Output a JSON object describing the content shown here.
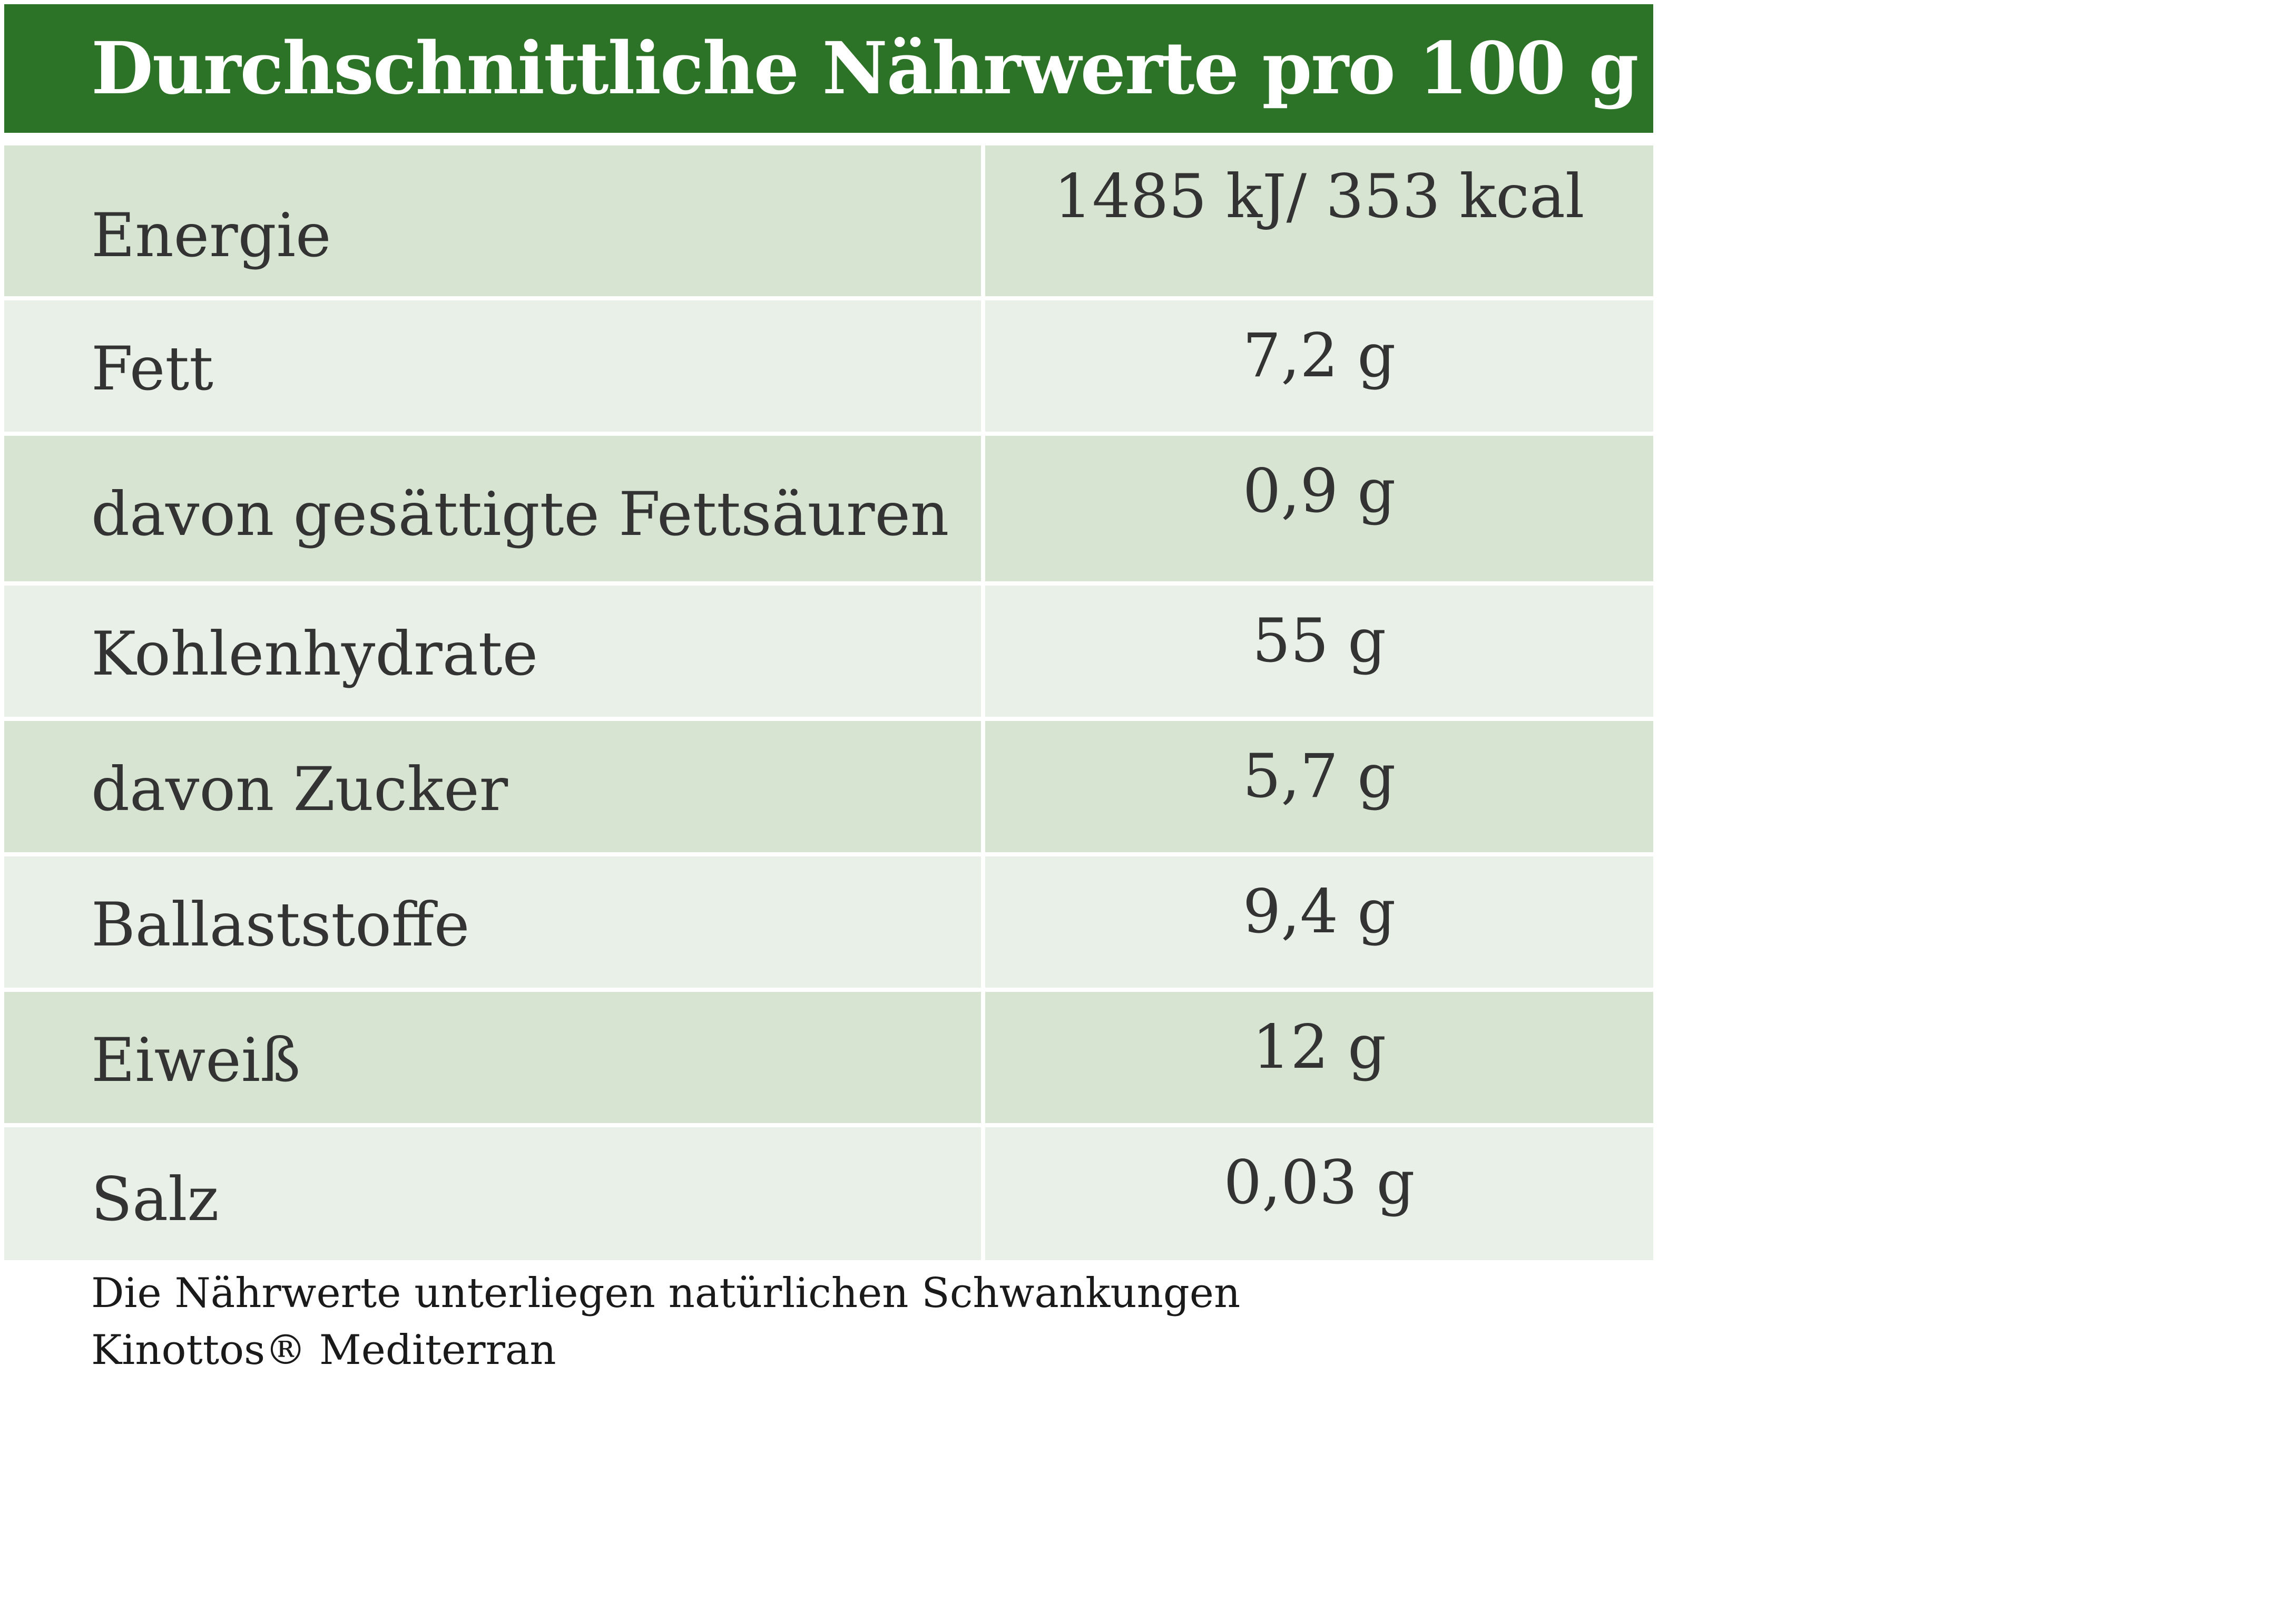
{
  "table": {
    "title": "Durchschnittliche Nährwerte pro 100 g",
    "rows": [
      {
        "label": "Energie",
        "value": "1485 kJ/ 353 kcal"
      },
      {
        "label": "Fett",
        "value": "7,2 g"
      },
      {
        "label": "davon gesättigte Fettsäuren",
        "value": "0,9 g"
      },
      {
        "label": "Kohlenhydrate",
        "value": "55 g"
      },
      {
        "label": "davon Zucker",
        "value": "5,7 g"
      },
      {
        "label": "Ballaststoffe",
        "value": "9,4 g"
      },
      {
        "label": "Eiweiß",
        "value": "12 g"
      },
      {
        "label": "Salz",
        "value": "0,03 g"
      }
    ]
  },
  "footer": {
    "note": "Die Nährwerte unterliegen natürlichen Schwankungen",
    "product": "Kinottos® Mediterran"
  },
  "colors": {
    "header_bg": "#2d7327",
    "row_odd": "#d7e4d2",
    "row_even": "#e9f0e7",
    "text": "#333333"
  }
}
